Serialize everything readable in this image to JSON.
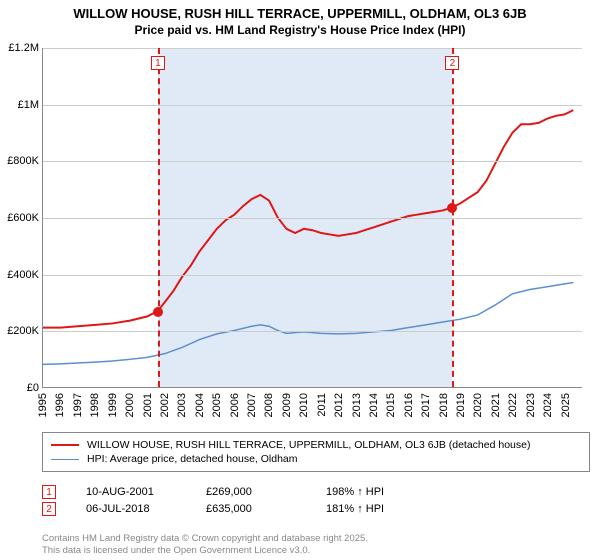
{
  "title": {
    "line1": "WILLOW HOUSE, RUSH HILL TERRACE, UPPERMILL, OLDHAM, OL3 6JB",
    "line2": "Price paid vs. HM Land Registry's House Price Index (HPI)",
    "fontsize_line1": 13,
    "fontsize_line2": 12,
    "fontweight": "bold",
    "color": "#000000"
  },
  "chart": {
    "type": "line",
    "background_color": "#ffffff",
    "grid_color": "#cccccc",
    "axis_color": "#888888",
    "y": {
      "min": 0,
      "max": 1200000,
      "ticks": [
        0,
        200000,
        400000,
        600000,
        800000,
        1000000,
        1200000
      ],
      "tick_labels": [
        "£0",
        "£200K",
        "£400K",
        "£600K",
        "£800K",
        "£1M",
        "£1.2M"
      ],
      "label_fontsize": 11
    },
    "x": {
      "min": 1995,
      "max": 2026,
      "ticks": [
        1995,
        1996,
        1997,
        1998,
        1999,
        2000,
        2001,
        2002,
        2003,
        2004,
        2005,
        2006,
        2007,
        2008,
        2009,
        2010,
        2011,
        2012,
        2013,
        2014,
        2015,
        2016,
        2017,
        2018,
        2019,
        2020,
        2021,
        2022,
        2023,
        2024,
        2025
      ],
      "label_fontsize": 11,
      "label_rotation": -90
    },
    "shaded_band": {
      "x_start": 2001.6,
      "x_end": 2018.5,
      "color": "#dbe6f4",
      "opacity": 0.85
    },
    "series": [
      {
        "name": "property",
        "label": "WILLOW HOUSE, RUSH HILL TERRACE, UPPERMILL, OLDHAM, OL3 6JB (detached house)",
        "color": "#de1717",
        "line_width": 2,
        "points": [
          [
            1995.0,
            210000
          ],
          [
            1996.0,
            210000
          ],
          [
            1997.0,
            215000
          ],
          [
            1998.0,
            220000
          ],
          [
            1999.0,
            225000
          ],
          [
            2000.0,
            235000
          ],
          [
            2001.0,
            250000
          ],
          [
            2001.6,
            269000
          ],
          [
            2002.0,
            300000
          ],
          [
            2002.5,
            340000
          ],
          [
            2003.0,
            390000
          ],
          [
            2003.5,
            430000
          ],
          [
            2004.0,
            480000
          ],
          [
            2004.5,
            520000
          ],
          [
            2005.0,
            560000
          ],
          [
            2005.5,
            590000
          ],
          [
            2006.0,
            610000
          ],
          [
            2006.5,
            640000
          ],
          [
            2007.0,
            665000
          ],
          [
            2007.5,
            680000
          ],
          [
            2008.0,
            660000
          ],
          [
            2008.5,
            600000
          ],
          [
            2009.0,
            560000
          ],
          [
            2009.5,
            545000
          ],
          [
            2010.0,
            560000
          ],
          [
            2010.5,
            555000
          ],
          [
            2011.0,
            545000
          ],
          [
            2011.5,
            540000
          ],
          [
            2012.0,
            535000
          ],
          [
            2012.5,
            540000
          ],
          [
            2013.0,
            545000
          ],
          [
            2013.5,
            555000
          ],
          [
            2014.0,
            565000
          ],
          [
            2014.5,
            575000
          ],
          [
            2015.0,
            585000
          ],
          [
            2015.5,
            595000
          ],
          [
            2016.0,
            605000
          ],
          [
            2016.5,
            610000
          ],
          [
            2017.0,
            615000
          ],
          [
            2017.5,
            620000
          ],
          [
            2018.0,
            625000
          ],
          [
            2018.5,
            635000
          ],
          [
            2019.0,
            650000
          ],
          [
            2019.5,
            670000
          ],
          [
            2020.0,
            690000
          ],
          [
            2020.5,
            730000
          ],
          [
            2021.0,
            790000
          ],
          [
            2021.5,
            850000
          ],
          [
            2022.0,
            900000
          ],
          [
            2022.5,
            930000
          ],
          [
            2023.0,
            930000
          ],
          [
            2023.5,
            935000
          ],
          [
            2024.0,
            950000
          ],
          [
            2024.5,
            960000
          ],
          [
            2025.0,
            965000
          ],
          [
            2025.5,
            980000
          ]
        ]
      },
      {
        "name": "hpi",
        "label": "HPI: Average price, detached house, Oldham",
        "color": "#5b8fd0",
        "line_width": 1.5,
        "points": [
          [
            1995.0,
            80000
          ],
          [
            1996.0,
            82000
          ],
          [
            1997.0,
            85000
          ],
          [
            1998.0,
            88000
          ],
          [
            1999.0,
            92000
          ],
          [
            2000.0,
            98000
          ],
          [
            2001.0,
            105000
          ],
          [
            2002.0,
            118000
          ],
          [
            2003.0,
            140000
          ],
          [
            2004.0,
            168000
          ],
          [
            2005.0,
            188000
          ],
          [
            2006.0,
            200000
          ],
          [
            2007.0,
            215000
          ],
          [
            2007.5,
            220000
          ],
          [
            2008.0,
            215000
          ],
          [
            2008.5,
            200000
          ],
          [
            2009.0,
            190000
          ],
          [
            2010.0,
            195000
          ],
          [
            2011.0,
            190000
          ],
          [
            2012.0,
            188000
          ],
          [
            2013.0,
            190000
          ],
          [
            2014.0,
            195000
          ],
          [
            2015.0,
            200000
          ],
          [
            2016.0,
            210000
          ],
          [
            2017.0,
            220000
          ],
          [
            2018.0,
            230000
          ],
          [
            2019.0,
            240000
          ],
          [
            2020.0,
            255000
          ],
          [
            2021.0,
            290000
          ],
          [
            2022.0,
            330000
          ],
          [
            2023.0,
            345000
          ],
          [
            2024.0,
            355000
          ],
          [
            2025.0,
            365000
          ],
          [
            2025.5,
            370000
          ]
        ]
      }
    ],
    "sale_markers": [
      {
        "n": "1",
        "x": 2001.6,
        "y": 269000,
        "color": "#de1717"
      },
      {
        "n": "2",
        "x": 2018.5,
        "y": 635000,
        "color": "#de1717"
      }
    ],
    "marker_box_y_offset_top": 0
  },
  "legend": {
    "border_color": "#888888",
    "fontsize": 10.5,
    "items": [
      {
        "series": "property"
      },
      {
        "series": "hpi"
      }
    ]
  },
  "sales": {
    "fontsize": 11,
    "rows": [
      {
        "n": "1",
        "marker_color": "#de1717",
        "date": "10-AUG-2001",
        "price": "£269,000",
        "delta": "198% ↑ HPI"
      },
      {
        "n": "2",
        "marker_color": "#de1717",
        "date": "06-JUL-2018",
        "price": "£635,000",
        "delta": "181% ↑ HPI"
      }
    ]
  },
  "footer": {
    "line1": "Contains HM Land Registry data © Crown copyright and database right 2025.",
    "line2": "This data is licensed under the Open Government Licence v3.0.",
    "color": "#888888",
    "fontsize": 9.5
  }
}
